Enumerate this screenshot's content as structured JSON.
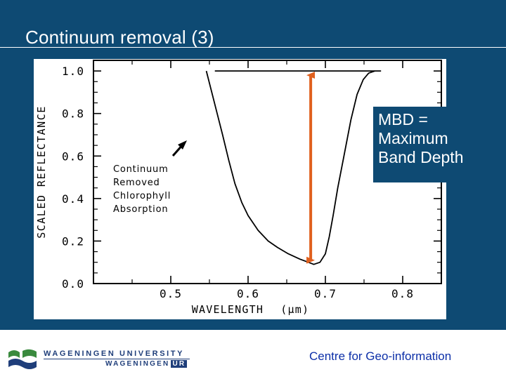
{
  "slide": {
    "title": "Continuum removal (3)",
    "callout_lines": [
      "MBD =",
      "Maximum",
      "Band Depth"
    ],
    "footer_org_line1": "WAGENINGEN UNIVERSITY",
    "footer_org_line2": "WAGENINGEN",
    "footer_org_ur": "UR",
    "footer_centre": "Centre for Geo-information",
    "colors": {
      "background": "#0e4a73",
      "arrow": "#e0601e",
      "footer_text": "#0c2fa8",
      "logo_green": "#3a8a3e"
    }
  },
  "chart_data": {
    "type": "line",
    "xlabel": "WAVELENGTH",
    "xlabel_unit": "(μm)",
    "ylabel": "SCALED REFLECTANCE",
    "xlim": [
      0.4,
      0.85
    ],
    "ylim": [
      0.0,
      1.05
    ],
    "x_ticks": [
      0.5,
      0.6,
      0.7,
      0.8
    ],
    "x_tick_labels": [
      "0.5",
      "0.6",
      "0.7",
      "0.8"
    ],
    "y_ticks": [
      0.0,
      0.2,
      0.4,
      0.6,
      0.8,
      1.0
    ],
    "y_tick_labels": [
      "0.0",
      "0.2",
      "0.4",
      "0.6",
      "0.8",
      "1.0"
    ],
    "grid": false,
    "series": [
      {
        "x": [
          0.546,
          0.553,
          0.56,
          0.567,
          0.575,
          0.583,
          0.592,
          0.6,
          0.613,
          0.626,
          0.638,
          0.652,
          0.667,
          0.678,
          0.685,
          0.693,
          0.7,
          0.705,
          0.71,
          0.716,
          0.724,
          0.733,
          0.741,
          0.749,
          0.756,
          0.764
        ],
        "y": [
          1.0,
          0.9,
          0.8,
          0.7,
          0.58,
          0.47,
          0.38,
          0.32,
          0.25,
          0.2,
          0.17,
          0.14,
          0.115,
          0.1,
          0.09,
          0.1,
          0.14,
          0.22,
          0.32,
          0.45,
          0.6,
          0.77,
          0.89,
          0.96,
          0.99,
          1.0
        ]
      },
      {
        "x": [
          0.557,
          0.772
        ],
        "y": [
          1.0,
          1.0
        ]
      }
    ],
    "annotations": [
      {
        "text": [
          "Continuum",
          "Removed",
          "Chlorophyll",
          "Absorption"
        ]
      },
      {
        "text": [
          "MBD =",
          "Maximum",
          "Band Depth"
        ],
        "x": 0.681,
        "y_from": 0.09,
        "y_to": 1.0
      }
    ]
  }
}
